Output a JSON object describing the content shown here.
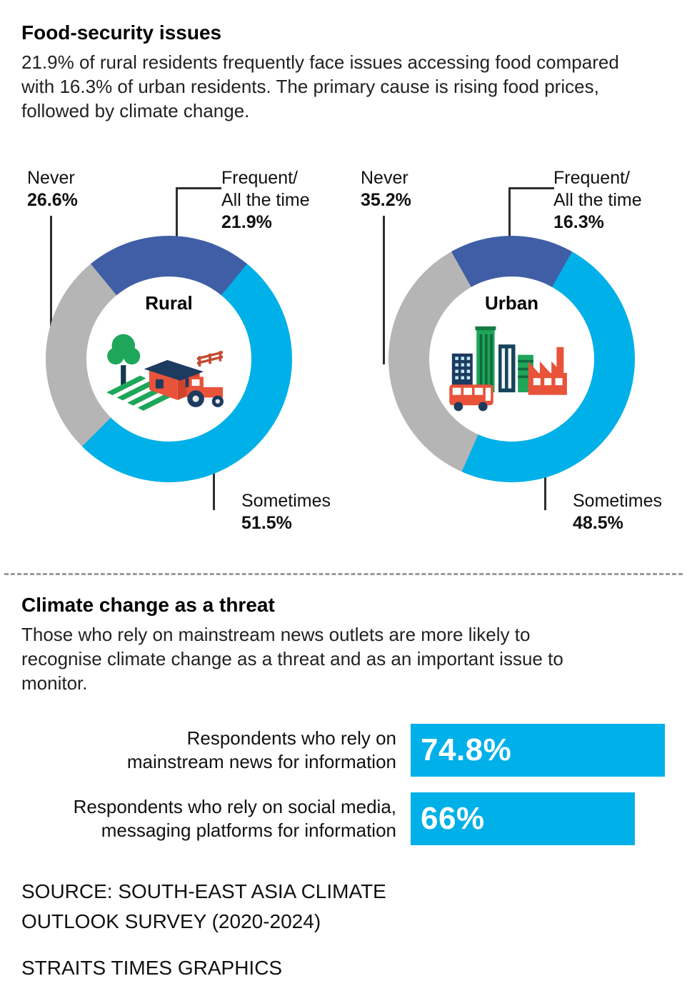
{
  "accent_colors": {
    "frequent": "#3f5ea6",
    "sometimes": "#00b0e8",
    "never": "#b5b5b5",
    "bar": "#00b0e8"
  },
  "food_security": {
    "title": "Food-security issues",
    "description": "21.9% of rural residents frequently face issues accessing food compared with 16.3% of urban residents. The primary cause is rising food prices, followed by climate change.",
    "rural": {
      "name": "Rural",
      "never_label": "Never",
      "never_value": "26.6%",
      "frequent_label_line1": "Frequent/",
      "frequent_label_line2": "All the time",
      "frequent_value": "21.9%",
      "sometimes_label": "Sometimes",
      "sometimes_value": "51.5%"
    },
    "urban": {
      "name": "Urban",
      "never_label": "Never",
      "never_value": "35.2%",
      "frequent_label_line1": "Frequent/",
      "frequent_label_line2": "All the time",
      "frequent_value": "16.3%",
      "sometimes_label": "Sometimes",
      "sometimes_value": "48.5%"
    }
  },
  "climate_threat": {
    "title": "Climate change as a threat",
    "description": "Those who rely on mainstream news outlets are more likely to recognise climate change as a threat and as an important issue to monitor.",
    "bars": [
      {
        "label_line1": "Respondents who rely on",
        "label_line2": "mainstream news for information",
        "value_label": "74.8%"
      },
      {
        "label_line1": "Respondents who rely on social media,",
        "label_line2": "messaging platforms for information",
        "value_label": "66%"
      }
    ]
  },
  "source": {
    "line1": "SOURCE: SOUTH-EAST ASIA CLIMATE",
    "line2": "OUTLOOK SURVEY (2020-2024)",
    "credit": "STRAITS TIMES GRAPHICS"
  },
  "chart_data": [
    {
      "type": "pie",
      "donut": true,
      "title": "Rural",
      "labels": [
        "Frequent/All the time",
        "Sometimes",
        "Never"
      ],
      "values": [
        21.9,
        51.5,
        26.6
      ],
      "colors": [
        "#3f5ea6",
        "#00b0e8",
        "#b5b5b5"
      ]
    },
    {
      "type": "pie",
      "donut": true,
      "title": "Urban",
      "labels": [
        "Frequent/All the time",
        "Sometimes",
        "Never"
      ],
      "values": [
        16.3,
        48.5,
        35.2
      ],
      "colors": [
        "#3f5ea6",
        "#00b0e8",
        "#b5b5b5"
      ]
    },
    {
      "type": "bar",
      "orientation": "horizontal",
      "categories": [
        "Respondents who rely on mainstream news for information",
        "Respondents who rely on social media, messaging platforms for information"
      ],
      "values": [
        74.8,
        66
      ],
      "value_labels": [
        "74.8%",
        "66%"
      ],
      "xlim": [
        0,
        75
      ],
      "bar_color": "#00b0e8"
    }
  ]
}
